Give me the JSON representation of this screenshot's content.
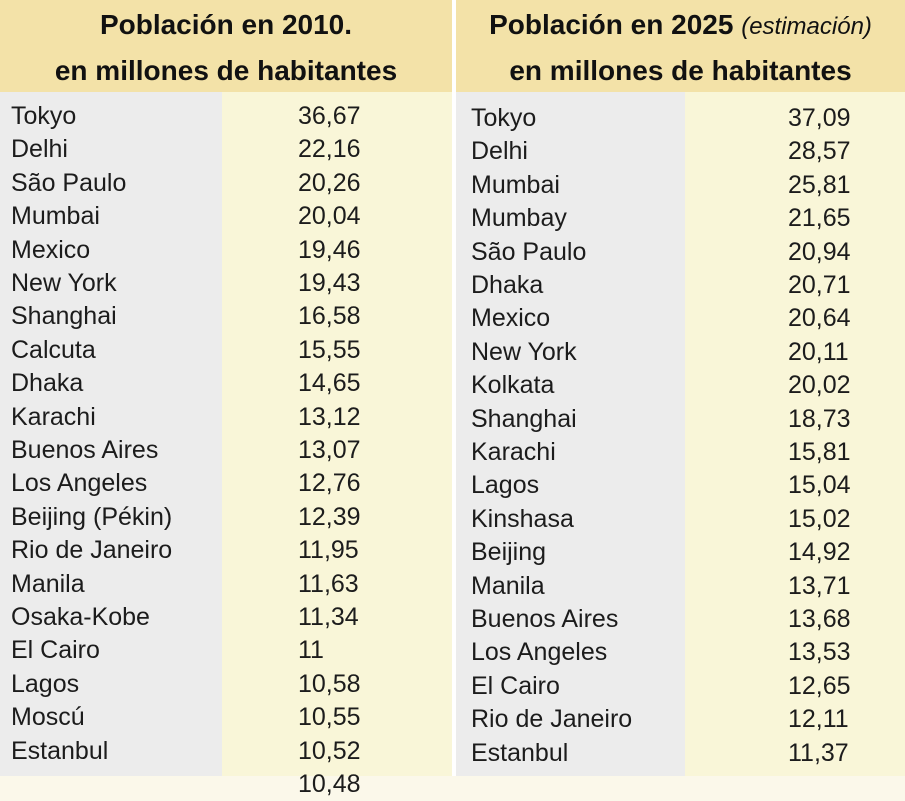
{
  "table_2010": {
    "title": "Población en 2010.",
    "subtitle": "en millones de habitantes",
    "rows": [
      {
        "city": "Tokyo",
        "value": "36,67"
      },
      {
        "city": "Delhi",
        "value": "22,16"
      },
      {
        "city": "São Paulo",
        "value": "20,26"
      },
      {
        "city": "Mumbai",
        "value": "20,04"
      },
      {
        "city": "Mexico",
        "value": "19,46"
      },
      {
        "city": "New York",
        "value": "19,43"
      },
      {
        "city": "Shanghai",
        "value": "16,58"
      },
      {
        "city": "Calcuta",
        "value": "15,55"
      },
      {
        "city": "Dhaka",
        "value": "14,65"
      },
      {
        "city": "Karachi",
        "value": "13,12"
      },
      {
        "city": "Buenos Aires",
        "value": "13,07"
      },
      {
        "city": "Los Angeles",
        "value": "12,76"
      },
      {
        "city": "Beijing (Pékin)",
        "value": "12,39"
      },
      {
        "city": "Rio de Janeiro",
        "value": "11,95"
      },
      {
        "city": "Manila",
        "value": "11,63"
      },
      {
        "city": "Osaka-Kobe",
        "value": "11,34"
      },
      {
        "city": "El Cairo",
        "value": "11"
      },
      {
        "city": "Lagos",
        "value": "10,58"
      },
      {
        "city": "Moscú",
        "value": "10,55"
      },
      {
        "city": "Estanbul",
        "value": "10,52"
      },
      {
        "city": "",
        "value": "10,48"
      }
    ]
  },
  "table_2025": {
    "title": "Población en 2025",
    "title_note": "(estimación)",
    "subtitle": "en millones de habitantes",
    "rows": [
      {
        "city": "Tokyo",
        "value": "37,09"
      },
      {
        "city": "Delhi",
        "value": "28,57"
      },
      {
        "city": "Mumbai",
        "value": "25,81"
      },
      {
        "city": "Mumbay",
        "value": "21,65"
      },
      {
        "city": "São Paulo",
        "value": "20,94"
      },
      {
        "city": "Dhaka",
        "value": "20,71"
      },
      {
        "city": "Mexico",
        "value": "20,64"
      },
      {
        "city": "New York",
        "value": "20,11"
      },
      {
        "city": "Kolkata",
        "value": "20,02"
      },
      {
        "city": "Shanghai",
        "value": "18,73"
      },
      {
        "city": "Karachi",
        "value": "15,81"
      },
      {
        "city": "Lagos",
        "value": "15,04"
      },
      {
        "city": "Kinshasa",
        "value": "15,02"
      },
      {
        "city": "Beijing",
        "value": "14,92"
      },
      {
        "city": "Manila",
        "value": "13,71"
      },
      {
        "city": "Buenos Aires",
        "value": "13,68"
      },
      {
        "city": "Los Angeles",
        "value": "13,53"
      },
      {
        "city": "El Cairo",
        "value": "12,65"
      },
      {
        "city": "Rio de Janeiro",
        "value": "12,11"
      },
      {
        "city": "Estanbul",
        "value": "11,37"
      }
    ]
  }
}
